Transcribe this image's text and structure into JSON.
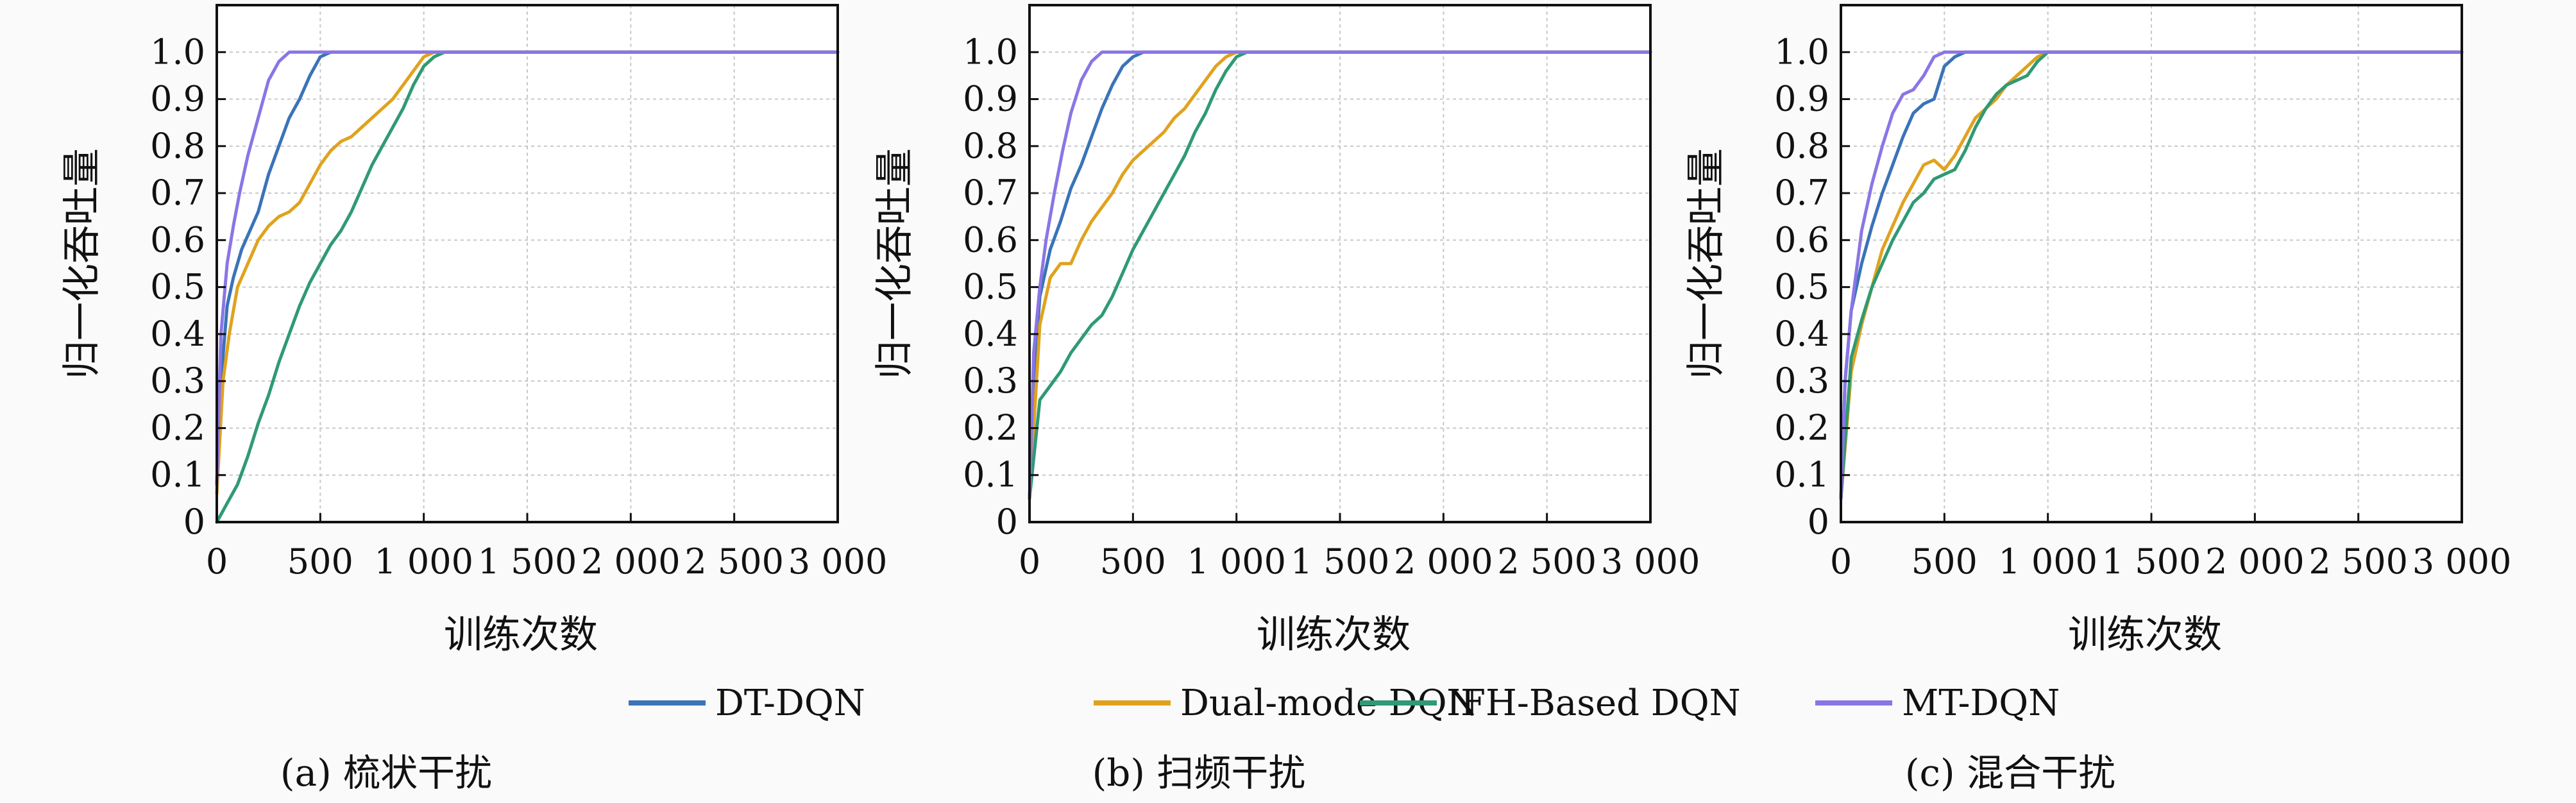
{
  "figure": {
    "legend": [
      {
        "label": "DT-DQN",
        "color": "#3a73b8"
      },
      {
        "label": "Dual-mode DQN",
        "color": "#e0a21e"
      },
      {
        "label": "IFH-Based DQN",
        "color": "#2f9a73"
      },
      {
        "label": "MT-DQN",
        "color": "#8b75e6"
      }
    ],
    "panels": [
      {
        "caption": "(a) 梳状干扰",
        "xlabel": "训练次数",
        "ylabel": "归一化吞吐量"
      },
      {
        "caption": "(b) 扫频干扰",
        "xlabel": "训练次数",
        "ylabel": "归一化吞吐量"
      },
      {
        "caption": "(c) 混合干扰",
        "xlabel": "训练次数",
        "ylabel": "归一化吞吐量"
      }
    ]
  },
  "chart_data": [
    {
      "type": "line",
      "title": "(a) 梳状干扰",
      "xlabel": "训练次数",
      "ylabel": "归一化吞吐量",
      "xlim": [
        0,
        3000
      ],
      "ylim": [
        0,
        1.1
      ],
      "xticks": [
        0,
        500,
        1000,
        1500,
        2000,
        2500,
        3000
      ],
      "xtick_labels": [
        "0",
        "500",
        "1 000",
        "1 500",
        "2 000",
        "2 500",
        "3 000"
      ],
      "yticks": [
        0,
        0.1,
        0.2,
        0.3,
        0.4,
        0.5,
        0.6,
        0.7,
        0.8,
        0.9,
        1.0
      ],
      "ytick_labels": [
        "0",
        "0.1",
        "0.2",
        "0.3",
        "0.4",
        "0.5",
        "0.6",
        "0.7",
        "0.8",
        "0.9",
        "1.0"
      ],
      "grid": true,
      "series": [
        {
          "name": "DT-DQN",
          "color": "#3a73b8",
          "x": [
            0,
            20,
            50,
            80,
            120,
            160,
            200,
            250,
            300,
            350,
            400,
            450,
            500,
            550,
            600,
            3000
          ],
          "y": [
            0.08,
            0.3,
            0.46,
            0.52,
            0.58,
            0.62,
            0.66,
            0.74,
            0.8,
            0.86,
            0.9,
            0.95,
            0.99,
            1.0,
            1.0,
            1.0
          ]
        },
        {
          "name": "Dual-mode DQN",
          "color": "#e0a21e",
          "x": [
            0,
            30,
            60,
            100,
            150,
            200,
            250,
            300,
            350,
            400,
            450,
            500,
            550,
            600,
            650,
            700,
            750,
            800,
            850,
            900,
            950,
            1000,
            1050,
            3000
          ],
          "y": [
            0.06,
            0.3,
            0.4,
            0.5,
            0.55,
            0.6,
            0.63,
            0.65,
            0.66,
            0.68,
            0.72,
            0.76,
            0.79,
            0.81,
            0.82,
            0.84,
            0.86,
            0.88,
            0.9,
            0.93,
            0.96,
            0.99,
            1.0,
            1.0
          ]
        },
        {
          "name": "IFH-Based DQN",
          "color": "#2f9a73",
          "x": [
            0,
            50,
            100,
            150,
            200,
            250,
            300,
            350,
            400,
            450,
            500,
            550,
            600,
            650,
            700,
            750,
            800,
            850,
            900,
            950,
            1000,
            1050,
            1100,
            3000
          ],
          "y": [
            0.0,
            0.04,
            0.08,
            0.14,
            0.21,
            0.27,
            0.34,
            0.4,
            0.46,
            0.51,
            0.55,
            0.59,
            0.62,
            0.66,
            0.71,
            0.76,
            0.8,
            0.84,
            0.88,
            0.93,
            0.97,
            0.99,
            1.0,
            1.0
          ]
        },
        {
          "name": "MT-DQN",
          "color": "#8b75e6",
          "x": [
            0,
            20,
            50,
            80,
            110,
            150,
            200,
            250,
            300,
            350,
            400,
            3000
          ],
          "y": [
            0.08,
            0.4,
            0.55,
            0.63,
            0.7,
            0.78,
            0.86,
            0.94,
            0.98,
            1.0,
            1.0,
            1.0
          ]
        }
      ]
    },
    {
      "type": "line",
      "title": "(b) 扫频干扰",
      "xlabel": "训练次数",
      "ylabel": "归一化吞吐量",
      "xlim": [
        0,
        3000
      ],
      "ylim": [
        0,
        1.1
      ],
      "xticks": [
        0,
        500,
        1000,
        1500,
        2000,
        2500,
        3000
      ],
      "xtick_labels": [
        "0",
        "500",
        "1 000",
        "1 500",
        "2 000",
        "2 500",
        "3 000"
      ],
      "yticks": [
        0,
        0.1,
        0.2,
        0.3,
        0.4,
        0.5,
        0.6,
        0.7,
        0.8,
        0.9,
        1.0
      ],
      "ytick_labels": [
        "0",
        "0.1",
        "0.2",
        "0.3",
        "0.4",
        "0.5",
        "0.6",
        "0.7",
        "0.8",
        "0.9",
        "1.0"
      ],
      "grid": true,
      "series": [
        {
          "name": "DT-DQN",
          "color": "#3a73b8",
          "x": [
            0,
            20,
            50,
            100,
            150,
            200,
            250,
            300,
            350,
            400,
            450,
            500,
            550,
            600,
            3000
          ],
          "y": [
            0.05,
            0.3,
            0.48,
            0.58,
            0.64,
            0.71,
            0.76,
            0.82,
            0.88,
            0.93,
            0.97,
            0.99,
            1.0,
            1.0,
            1.0
          ]
        },
        {
          "name": "Dual-mode DQN",
          "color": "#e0a21e",
          "x": [
            0,
            50,
            100,
            150,
            200,
            250,
            300,
            350,
            400,
            450,
            500,
            550,
            600,
            650,
            700,
            750,
            800,
            850,
            900,
            950,
            1000,
            3000
          ],
          "y": [
            0.05,
            0.42,
            0.52,
            0.55,
            0.55,
            0.6,
            0.64,
            0.67,
            0.7,
            0.74,
            0.77,
            0.79,
            0.81,
            0.83,
            0.86,
            0.88,
            0.91,
            0.94,
            0.97,
            0.99,
            1.0,
            1.0
          ]
        },
        {
          "name": "IFH-Based DQN",
          "color": "#2f9a73",
          "x": [
            0,
            50,
            100,
            150,
            200,
            250,
            300,
            350,
            400,
            450,
            500,
            550,
            600,
            650,
            700,
            750,
            800,
            850,
            900,
            950,
            1000,
            1050,
            3000
          ],
          "y": [
            0.05,
            0.26,
            0.29,
            0.32,
            0.36,
            0.39,
            0.42,
            0.44,
            0.48,
            0.53,
            0.58,
            0.62,
            0.66,
            0.7,
            0.74,
            0.78,
            0.83,
            0.87,
            0.92,
            0.96,
            0.99,
            1.0,
            1.0
          ]
        },
        {
          "name": "MT-DQN",
          "color": "#8b75e6",
          "x": [
            0,
            20,
            50,
            80,
            120,
            160,
            200,
            250,
            300,
            350,
            400,
            3000
          ],
          "y": [
            0.05,
            0.36,
            0.5,
            0.6,
            0.7,
            0.79,
            0.87,
            0.94,
            0.98,
            1.0,
            1.0,
            1.0
          ]
        }
      ]
    },
    {
      "type": "line",
      "title": "(c) 混合干扰",
      "xlabel": "训练次数",
      "ylabel": "归一化吞吐量",
      "xlim": [
        0,
        3000
      ],
      "ylim": [
        0,
        1.1
      ],
      "xticks": [
        0,
        500,
        1000,
        1500,
        2000,
        2500,
        3000
      ],
      "xtick_labels": [
        "0",
        "500",
        "1 000",
        "1 500",
        "2 000",
        "2 500",
        "3 000"
      ],
      "yticks": [
        0,
        0.1,
        0.2,
        0.3,
        0.4,
        0.5,
        0.6,
        0.7,
        0.8,
        0.9,
        1.0
      ],
      "ytick_labels": [
        "0",
        "0.1",
        "0.2",
        "0.3",
        "0.4",
        "0.5",
        "0.6",
        "0.7",
        "0.8",
        "0.9",
        "1.0"
      ],
      "grid": true,
      "series": [
        {
          "name": "DT-DQN",
          "color": "#3a73b8",
          "x": [
            0,
            20,
            50,
            100,
            150,
            200,
            250,
            300,
            350,
            400,
            450,
            500,
            550,
            600,
            3000
          ],
          "y": [
            0.05,
            0.3,
            0.45,
            0.55,
            0.63,
            0.7,
            0.76,
            0.82,
            0.87,
            0.89,
            0.9,
            0.97,
            0.99,
            1.0,
            1.0
          ]
        },
        {
          "name": "Dual-mode DQN",
          "color": "#e0a21e",
          "x": [
            0,
            50,
            100,
            150,
            200,
            250,
            300,
            350,
            400,
            450,
            500,
            550,
            600,
            650,
            700,
            750,
            800,
            850,
            900,
            950,
            1000,
            3000
          ],
          "y": [
            0.05,
            0.32,
            0.42,
            0.5,
            0.58,
            0.63,
            0.68,
            0.72,
            0.76,
            0.77,
            0.75,
            0.78,
            0.82,
            0.86,
            0.88,
            0.9,
            0.93,
            0.95,
            0.97,
            0.99,
            1.0,
            1.0
          ]
        },
        {
          "name": "IFH-Based DQN",
          "color": "#2f9a73",
          "x": [
            0,
            50,
            100,
            150,
            200,
            250,
            300,
            350,
            400,
            450,
            500,
            550,
            600,
            650,
            700,
            750,
            800,
            850,
            900,
            950,
            1000,
            3000
          ],
          "y": [
            0.05,
            0.35,
            0.43,
            0.5,
            0.55,
            0.6,
            0.64,
            0.68,
            0.7,
            0.73,
            0.74,
            0.75,
            0.79,
            0.84,
            0.88,
            0.91,
            0.93,
            0.94,
            0.95,
            0.98,
            1.0,
            1.0
          ]
        },
        {
          "name": "MT-DQN",
          "color": "#8b75e6",
          "x": [
            0,
            20,
            50,
            100,
            150,
            200,
            250,
            300,
            350,
            400,
            450,
            500,
            3000
          ],
          "y": [
            0.05,
            0.3,
            0.45,
            0.62,
            0.72,
            0.8,
            0.87,
            0.91,
            0.92,
            0.95,
            0.99,
            1.0,
            1.0
          ]
        }
      ]
    }
  ]
}
